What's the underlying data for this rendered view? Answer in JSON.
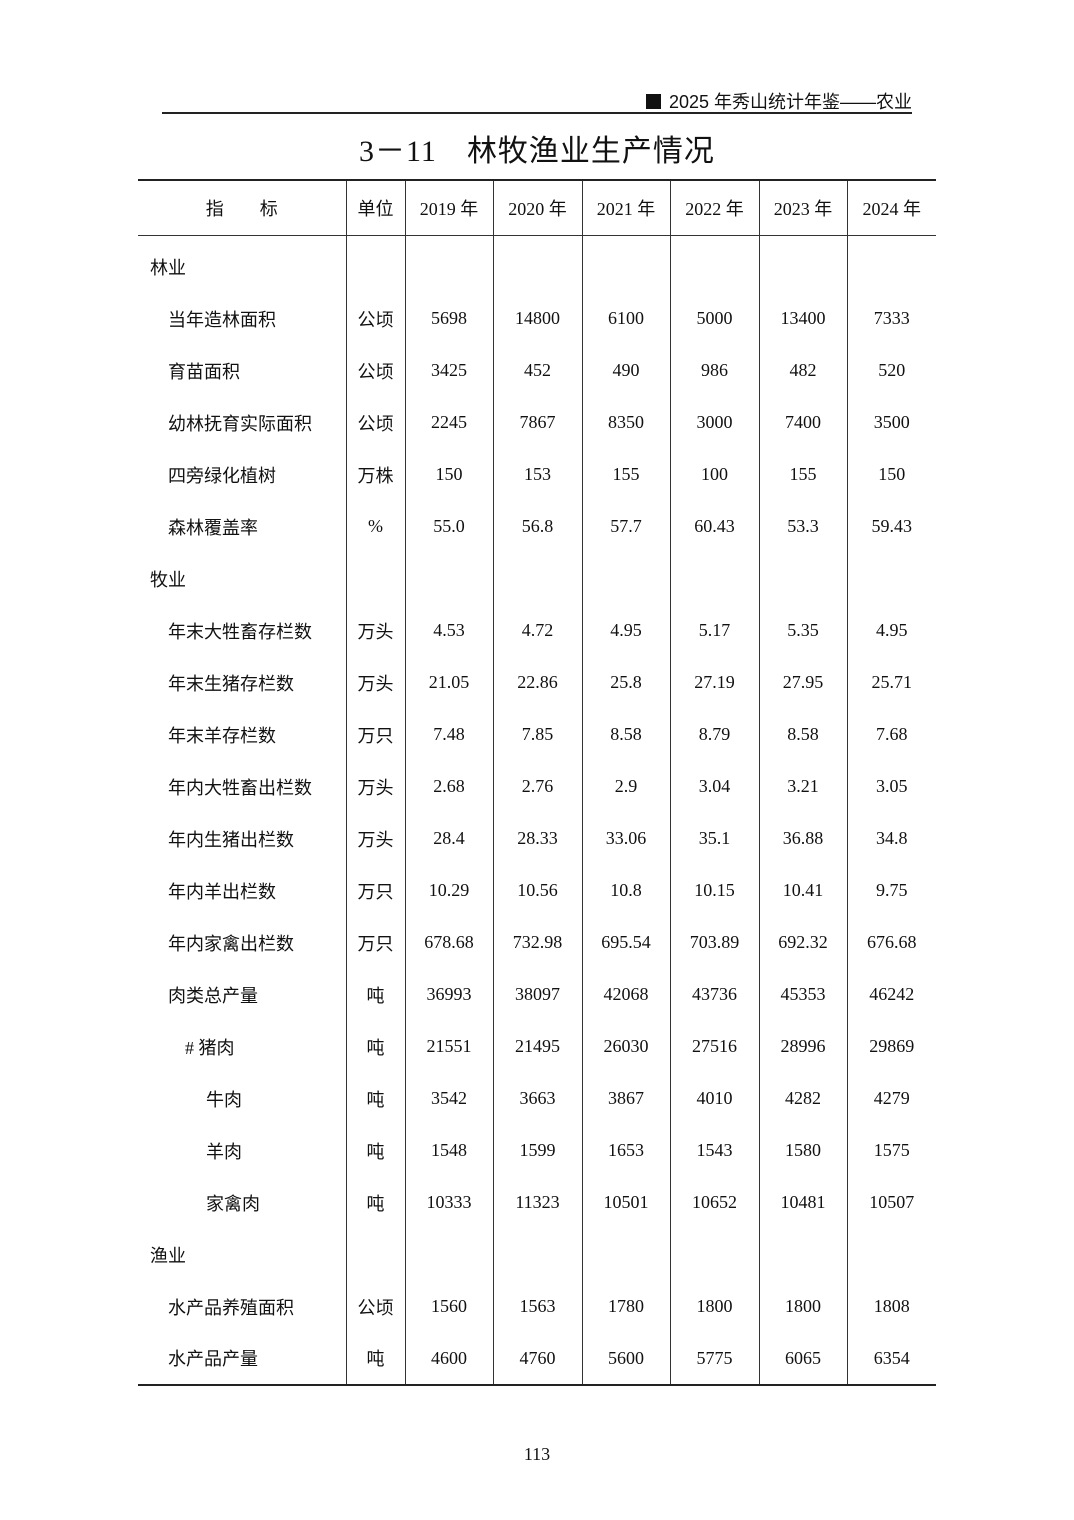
{
  "running_head": "2025 年秀山统计年鉴——农业",
  "title": {
    "number": "3－11",
    "text": "林牧渔业生产情况"
  },
  "table": {
    "headers": [
      "指　　标",
      "单位",
      "2019 年",
      "2020 年",
      "2021 年",
      "2022 年",
      "2023 年",
      "2024 年"
    ],
    "rows": [
      {
        "level": "sec",
        "label": "林业",
        "unit": "",
        "values": [
          "",
          "",
          "",
          "",
          "",
          ""
        ]
      },
      {
        "level": "l1",
        "label": "当年造林面积",
        "unit": "公顷",
        "values": [
          "5698",
          "14800",
          "6100",
          "5000",
          "13400",
          "7333"
        ]
      },
      {
        "level": "l1",
        "label": "育苗面积",
        "unit": "公顷",
        "values": [
          "3425",
          "452",
          "490",
          "986",
          "482",
          "520"
        ]
      },
      {
        "level": "l1",
        "label": "幼林抚育实际面积",
        "unit": "公顷",
        "values": [
          "2245",
          "7867",
          "8350",
          "3000",
          "7400",
          "3500"
        ]
      },
      {
        "level": "l1",
        "label": "四旁绿化植树",
        "unit": "万株",
        "values": [
          "150",
          "153",
          "155",
          "100",
          "155",
          "150"
        ]
      },
      {
        "level": "l1",
        "label": "森林覆盖率",
        "unit": "%",
        "values": [
          "55.0",
          "56.8",
          "57.7",
          "60.43",
          "53.3",
          "59.43"
        ]
      },
      {
        "level": "sec",
        "label": "牧业",
        "unit": "",
        "values": [
          "",
          "",
          "",
          "",
          "",
          ""
        ]
      },
      {
        "level": "l1",
        "label": "年末大牲畜存栏数",
        "unit": "万头",
        "values": [
          "4.53",
          "4.72",
          "4.95",
          "5.17",
          "5.35",
          "4.95"
        ]
      },
      {
        "level": "l1",
        "label": "年末生猪存栏数",
        "unit": "万头",
        "values": [
          "21.05",
          "22.86",
          "25.8",
          "27.19",
          "27.95",
          "25.71"
        ]
      },
      {
        "level": "l1",
        "label": "年末羊存栏数",
        "unit": "万只",
        "values": [
          "7.48",
          "7.85",
          "8.58",
          "8.79",
          "8.58",
          "7.68"
        ]
      },
      {
        "level": "l1",
        "label": "年内大牲畜出栏数",
        "unit": "万头",
        "values": [
          "2.68",
          "2.76",
          "2.9",
          "3.04",
          "3.21",
          "3.05"
        ]
      },
      {
        "level": "l1",
        "label": "年内生猪出栏数",
        "unit": "万头",
        "values": [
          "28.4",
          "28.33",
          "33.06",
          "35.1",
          "36.88",
          "34.8"
        ]
      },
      {
        "level": "l1",
        "label": "年内羊出栏数",
        "unit": "万只",
        "values": [
          "10.29",
          "10.56",
          "10.8",
          "10.15",
          "10.41",
          "9.75"
        ]
      },
      {
        "level": "l1",
        "label": "年内家禽出栏数",
        "unit": "万只",
        "values": [
          "678.68",
          "732.98",
          "695.54",
          "703.89",
          "692.32",
          "676.68"
        ]
      },
      {
        "level": "l1",
        "label": "肉类总产量",
        "unit": "吨",
        "values": [
          "36993",
          "38097",
          "42068",
          "43736",
          "45353",
          "46242"
        ]
      },
      {
        "level": "l2",
        "label": "#  猪肉",
        "unit": "吨",
        "values": [
          "21551",
          "21495",
          "26030",
          "27516",
          "28996",
          "29869"
        ]
      },
      {
        "level": "l3",
        "label": "牛肉",
        "unit": "吨",
        "values": [
          "3542",
          "3663",
          "3867",
          "4010",
          "4282",
          "4279"
        ]
      },
      {
        "level": "l3",
        "label": "羊肉",
        "unit": "吨",
        "values": [
          "1548",
          "1599",
          "1653",
          "1543",
          "1580",
          "1575"
        ]
      },
      {
        "level": "l3",
        "label": "家禽肉",
        "unit": "吨",
        "values": [
          "10333",
          "11323",
          "10501",
          "10652",
          "10481",
          "10507"
        ]
      },
      {
        "level": "sec",
        "label": "渔业",
        "unit": "",
        "values": [
          "",
          "",
          "",
          "",
          "",
          ""
        ]
      },
      {
        "level": "l1",
        "label": "水产品养殖面积",
        "unit": "公顷",
        "values": [
          "1560",
          "1563",
          "1780",
          "1800",
          "1800",
          "1808"
        ]
      },
      {
        "level": "l1",
        "label": "水产品产量",
        "unit": "吨",
        "values": [
          "4600",
          "4760",
          "5600",
          "5775",
          "6065",
          "6354"
        ]
      }
    ]
  },
  "page_number": "113"
}
